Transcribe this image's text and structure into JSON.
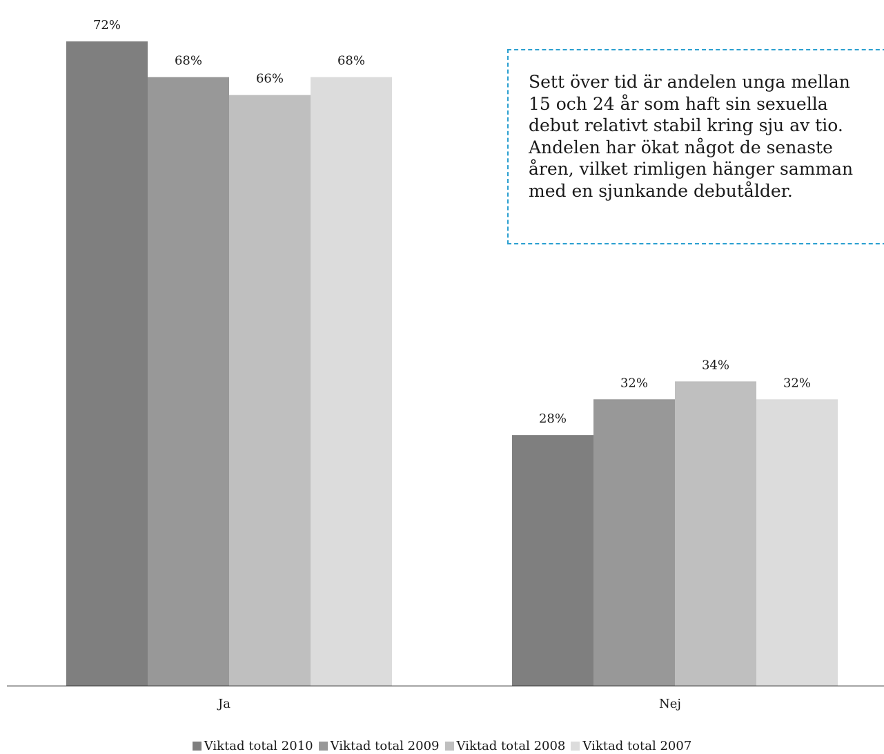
{
  "chart_data": {
    "type": "bar",
    "categories": [
      "Ja",
      "Nej"
    ],
    "series": [
      {
        "name": "Viktad total 2010",
        "color": "#7f7f7f",
        "values": [
          72,
          28
        ],
        "labels": [
          "72%",
          "28%"
        ]
      },
      {
        "name": "Viktad total 2009",
        "color": "#989898",
        "values": [
          68,
          32
        ],
        "labels": [
          "68%",
          "32%"
        ]
      },
      {
        "name": "Viktad total 2008",
        "color": "#bfbfbf",
        "values": [
          66,
          34
        ],
        "labels": [
          "66%",
          "34%"
        ]
      },
      {
        "name": "Viktad total 2007",
        "color": "#dcdcdc",
        "values": [
          68,
          32
        ],
        "labels": [
          "68%",
          "32%"
        ]
      }
    ],
    "ylim": [
      0,
      74.7
    ],
    "unit": "%",
    "grid": false,
    "legend": "bottom"
  },
  "annotation": {
    "text": "Sett över tid är andelen unga mellan\n15 och 24 år som haft sin sexuella\ndebut relativt stabil kring sju av tio.\nAndelen har ökat något de senaste\nåren, vilket rimligen hänger samman\nmed en sjunkande debutålder.",
    "border_color": "#2a9fd0"
  }
}
